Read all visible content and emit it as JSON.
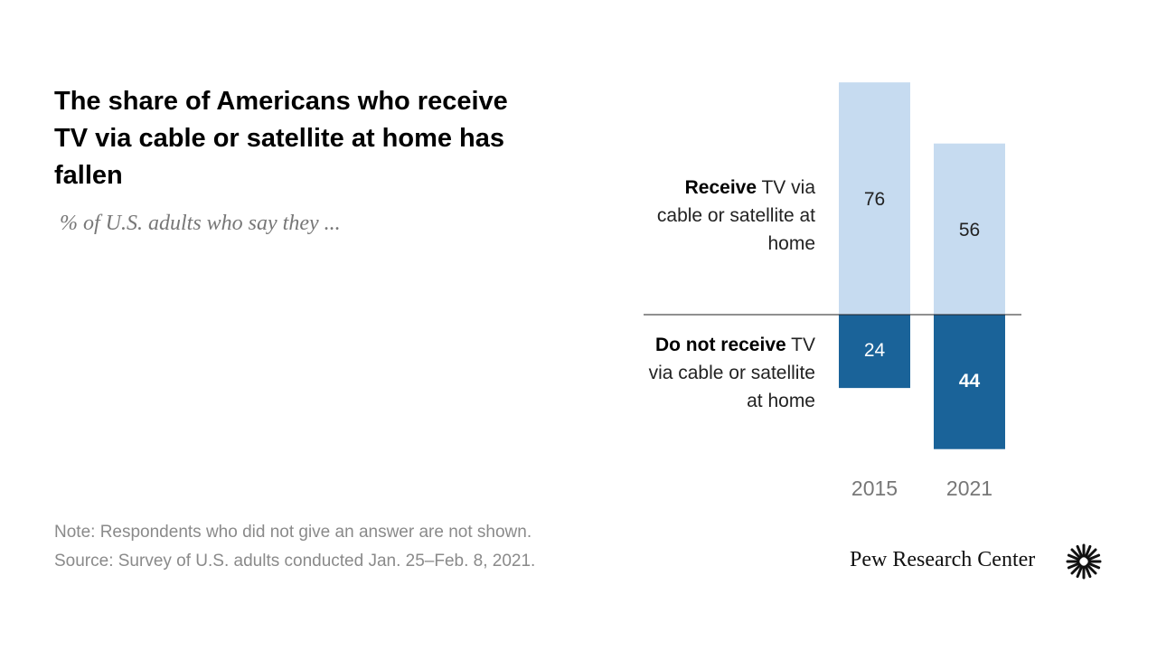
{
  "chart_data": {
    "type": "diverging_bar",
    "title": "The share of Americans who receive TV via cable or satellite at home has fallen",
    "subtitle": "% of U.S. adults who say they ...",
    "categories": [
      "2015",
      "2021"
    ],
    "series": [
      {
        "name": "Receive",
        "name_detail": "TV via cable or satellite at home",
        "color": "#c6dbf0",
        "label_color": "#222222",
        "direction": "up",
        "values": [
          76,
          56
        ]
      },
      {
        "name": "Do not receive",
        "name_detail": "TV via cable or satellite at home",
        "color": "#1a6399",
        "label_color": "#ffffff",
        "direction": "down",
        "values": [
          24,
          44
        ],
        "bold_values": [
          false,
          true
        ]
      }
    ],
    "notes": [
      "Note: Respondents who did not give an answer are not shown.",
      "Source: Survey of U.S. adults conducted Jan. 25–Feb. 8, 2021."
    ],
    "brand": "Pew Research Center"
  }
}
